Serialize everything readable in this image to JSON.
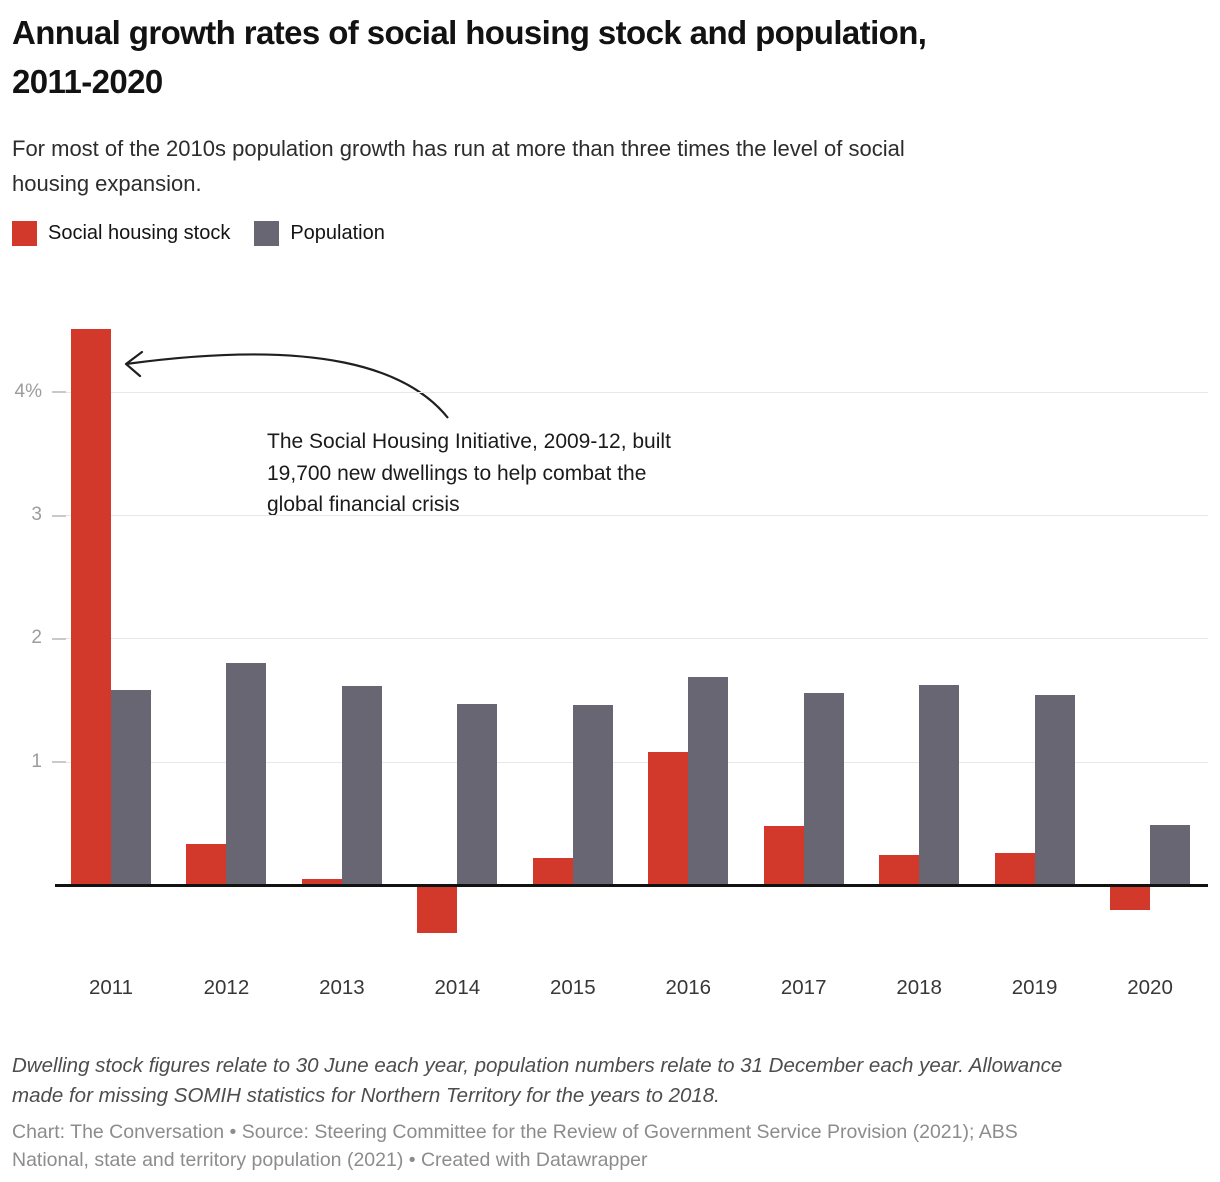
{
  "header": {
    "title_lines": [
      "Annual growth rates of social housing stock and population,",
      "2011-2020"
    ],
    "subtitle_lines": [
      "For most of the 2010s population growth has run at more than three times the level of social",
      "housing expansion."
    ]
  },
  "legend": [
    {
      "label": "Social housing stock",
      "color": "#d3392b"
    },
    {
      "label": "Population",
      "color": "#686672"
    }
  ],
  "annotation": {
    "lines": [
      "The Social Housing Initiative, 2009-12, built",
      "19,700 new dwellings to help combat the",
      "global financial crisis"
    ]
  },
  "chart_data": {
    "type": "bar",
    "title": "Annual growth rates of social housing stock and population, 2011-2020",
    "categories": [
      "2011",
      "2012",
      "2013",
      "2014",
      "2015",
      "2016",
      "2017",
      "2018",
      "2019",
      "2020"
    ],
    "series": [
      {
        "name": "Social housing stock",
        "color": "#d3392b",
        "values": [
          4.51,
          0.33,
          0.05,
          -0.37,
          0.22,
          1.08,
          0.48,
          0.24,
          0.26,
          -0.19
        ]
      },
      {
        "name": "Population",
        "color": "#686672",
        "values": [
          1.58,
          1.8,
          1.61,
          1.47,
          1.46,
          1.69,
          1.56,
          1.62,
          1.54,
          0.49
        ]
      }
    ],
    "xlabel": "",
    "ylabel": "",
    "unit": "%",
    "ylim": [
      -0.55,
      4.66
    ],
    "yticks": [
      {
        "value": 1,
        "label": "1"
      },
      {
        "value": 2,
        "label": "2"
      },
      {
        "value": 3,
        "label": "3"
      },
      {
        "value": 4,
        "label": "4%"
      }
    ],
    "grid": "horizontal",
    "legend_position": "top-left"
  },
  "footnote": {
    "lines": [
      "Dwelling stock figures relate to 30 June each year, population numbers relate to 31 December each year. Allowance",
      "made for missing SOMIH statistics for Northern Territory for the years to 2018."
    ]
  },
  "credit": {
    "lines": [
      "Chart: The Conversation • Source: Steering Committee for the Review of Government Service Provision (2021); ABS",
      "National, state and territory population (2021) • Created with Datawrapper"
    ]
  }
}
